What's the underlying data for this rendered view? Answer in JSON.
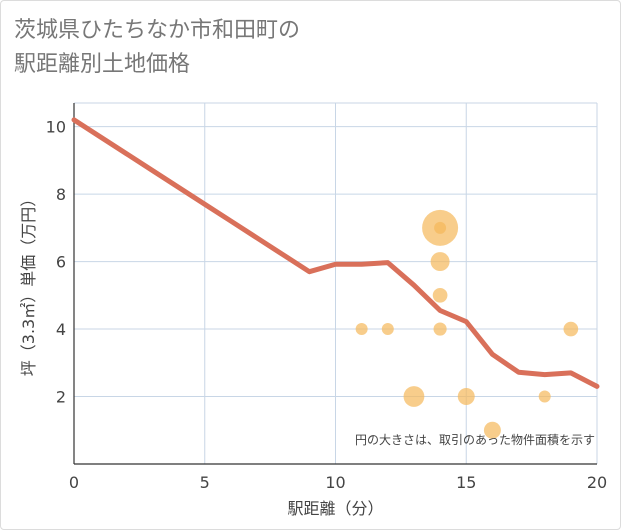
{
  "title_line1": "茨城県ひたちなか市和田町の",
  "title_line2": "駅距離別土地価格",
  "chart_data": {
    "type": "scatter",
    "title": "茨城県ひたちなか市和田町の駅距離別土地価格",
    "xlabel": "駅距離（分）",
    "ylabel": "坪（3.3㎡）単価（万円）",
    "xlim": [
      0,
      20
    ],
    "ylim": [
      0,
      10.7
    ],
    "xticks": [
      0,
      5,
      10,
      15,
      20
    ],
    "yticks": [
      2,
      4,
      6,
      8,
      10
    ],
    "grid": true,
    "note": "円の大きさは、取引のあった物件面積を示す",
    "colors": {
      "line": "#d9705a",
      "bubble": "#f5b85a",
      "grid": "#c8d6e6"
    },
    "line_series": {
      "name": "trend",
      "x": [
        0,
        1,
        2,
        3,
        4,
        5,
        6,
        7,
        8,
        9,
        10,
        11,
        12,
        13,
        14,
        15,
        16,
        17,
        18,
        19,
        20
      ],
      "y": [
        10.2,
        9.7,
        9.2,
        8.7,
        8.2,
        7.7,
        7.2,
        6.7,
        6.2,
        5.7,
        5.92,
        5.92,
        5.97,
        5.3,
        4.55,
        4.22,
        3.25,
        2.72,
        2.65,
        2.7,
        2.3
      ]
    },
    "scatter_series": {
      "name": "transactions",
      "points": [
        {
          "x": 11,
          "y": 4.0,
          "size": 1
        },
        {
          "x": 12,
          "y": 4.0,
          "size": 1
        },
        {
          "x": 13,
          "y": 2.0,
          "size": 3
        },
        {
          "x": 14,
          "y": 7.0,
          "size": 9
        },
        {
          "x": 14,
          "y": 7.0,
          "size": 1
        },
        {
          "x": 14,
          "y": 6.0,
          "size": 2.5
        },
        {
          "x": 14,
          "y": 5.0,
          "size": 1.5
        },
        {
          "x": 14,
          "y": 4.0,
          "size": 1.2
        },
        {
          "x": 15,
          "y": 2.0,
          "size": 2
        },
        {
          "x": 16,
          "y": 1.0,
          "size": 2
        },
        {
          "x": 18,
          "y": 2.0,
          "size": 1
        },
        {
          "x": 19,
          "y": 4.0,
          "size": 1.5
        }
      ]
    }
  }
}
